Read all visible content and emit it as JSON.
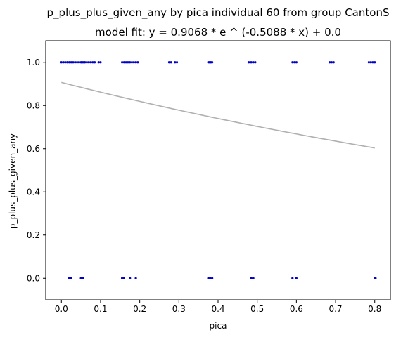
{
  "chart_data": {
    "type": "scatter",
    "title": "p_plus_plus_given_any by pica individual 60 from group CantonS",
    "subtitle": "model fit: y = 0.9068 * e ^ (-0.5088 * x) + 0.0",
    "xlabel": "pica",
    "ylabel": "p_plus_plus_given_any",
    "xlim": [
      -0.04,
      0.84
    ],
    "ylim": [
      -0.1,
      1.1
    ],
    "x_ticks": [
      0.0,
      0.1,
      0.2,
      0.3,
      0.4,
      0.5,
      0.6,
      0.7,
      0.8
    ],
    "x_tick_labels": [
      "0.0",
      "0.1",
      "0.2",
      "0.3",
      "0.4",
      "0.5",
      "0.6",
      "0.7",
      "0.8"
    ],
    "y_ticks": [
      0.0,
      0.2,
      0.4,
      0.6,
      0.8,
      1.0
    ],
    "y_tick_labels": [
      "0.0",
      "0.2",
      "0.4",
      "0.6",
      "0.8",
      "1.0"
    ],
    "grid": false,
    "legend": "none",
    "colors": {
      "points": "#0000cc",
      "fit": "#b0b0b0",
      "axes": "#000000"
    },
    "series": [
      {
        "x": [
          0.0,
          0.005,
          0.01,
          0.015,
          0.02,
          0.025,
          0.03,
          0.035,
          0.04,
          0.045,
          0.05,
          0.052,
          0.055,
          0.058,
          0.06,
          0.065,
          0.07,
          0.075,
          0.08,
          0.085,
          0.095,
          0.1,
          0.155,
          0.16,
          0.165,
          0.17,
          0.175,
          0.18,
          0.185,
          0.19,
          0.195,
          0.275,
          0.28,
          0.29,
          0.295,
          0.375,
          0.378,
          0.38,
          0.382,
          0.385,
          0.478,
          0.482,
          0.485,
          0.49,
          0.495,
          0.59,
          0.595,
          0.6,
          0.685,
          0.69,
          0.695,
          0.785,
          0.79,
          0.795,
          0.8
        ],
        "y": [
          1,
          1,
          1,
          1,
          1,
          1,
          1,
          1,
          1,
          1,
          1,
          1,
          1,
          1,
          1,
          1,
          1,
          1,
          1,
          1,
          1,
          1,
          1,
          1,
          1,
          1,
          1,
          1,
          1,
          1,
          1,
          1,
          1,
          1,
          1,
          1,
          1,
          1,
          1,
          1,
          1,
          1,
          1,
          1,
          1,
          1,
          1,
          1,
          1,
          1,
          1,
          1,
          1,
          1,
          1
        ]
      },
      {
        "x": [
          0.02,
          0.025,
          0.05,
          0.052,
          0.055,
          0.155,
          0.16,
          0.175,
          0.19,
          0.375,
          0.38,
          0.385,
          0.485,
          0.49,
          0.59,
          0.6,
          0.8,
          0.802
        ],
        "y": [
          0,
          0,
          0,
          0,
          0,
          0,
          0,
          0,
          0,
          0,
          0,
          0,
          0,
          0,
          0,
          0,
          0,
          0
        ]
      }
    ],
    "fit": {
      "a": 0.9068,
      "b": -0.5088,
      "c": 0.0,
      "x_range": [
        0.0,
        0.8
      ]
    }
  }
}
